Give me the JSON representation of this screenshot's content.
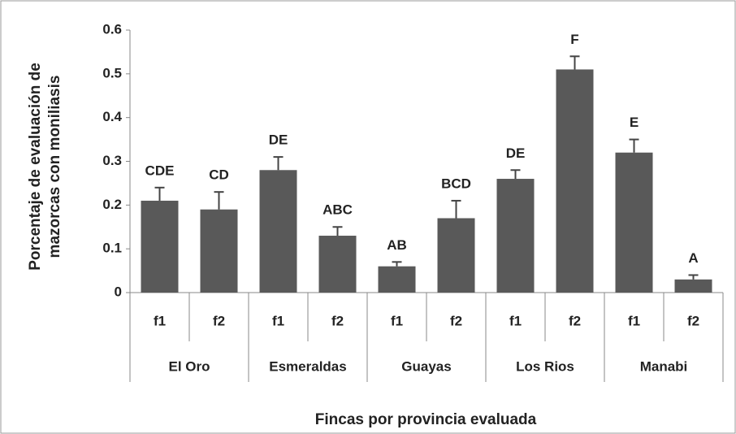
{
  "chart_data": {
    "type": "bar",
    "y_label": [
      "Porcentaje de evaluación  de",
      "mazorcas con moniliasis"
    ],
    "x_label": "Fincas por provincia evaluada",
    "categories": [
      "f1",
      "f2",
      "f1",
      "f2",
      "f1",
      "f2",
      "f1",
      "f2",
      "f1",
      "f2"
    ],
    "groups": [
      "El Oro",
      "Esmeraldas",
      "Guayas",
      "Los Rios",
      "Manabi"
    ],
    "values": [
      0.21,
      0.19,
      0.28,
      0.13,
      0.06,
      0.17,
      0.26,
      0.51,
      0.32,
      0.03
    ],
    "errors": [
      0.03,
      0.04,
      0.03,
      0.02,
      0.01,
      0.04,
      0.02,
      0.03,
      0.03,
      0.01
    ],
    "annotations": [
      "CDE",
      "CD",
      "DE",
      "ABC",
      "AB",
      "BCD",
      "DE",
      "F",
      "E",
      "A"
    ],
    "color": "#595959",
    "ylim": [
      0,
      0.6
    ],
    "yticks": [
      0,
      0.1,
      0.2,
      0.3,
      0.4,
      0.5,
      0.6
    ],
    "grid": false
  }
}
